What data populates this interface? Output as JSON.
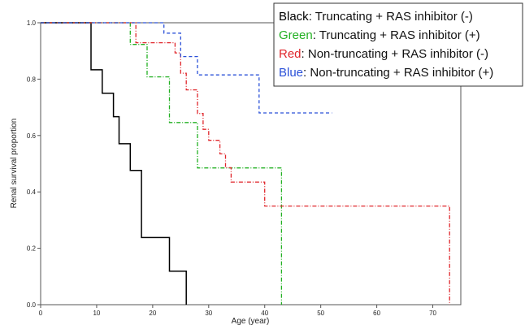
{
  "chart_data": {
    "type": "line",
    "subtype": "kaplan-meier step",
    "xlabel": "Age (year)",
    "ylabel": "Renal survival proportion",
    "xlim": [
      0,
      75
    ],
    "ylim": [
      0,
      1.0
    ],
    "x_ticks": [
      "0",
      "10",
      "20",
      "30",
      "40",
      "50",
      "60",
      "70"
    ],
    "y_ticks": [
      "0.0",
      "0.2",
      "0.4",
      "0.6",
      "0.8",
      "1.0"
    ],
    "grid": false,
    "legend_position": "top-right",
    "legend_entries": [
      {
        "prefix": "Black",
        "rest": ": Truncating + RAS inhibitor (-)",
        "color": "#000000"
      },
      {
        "prefix": "Green",
        "rest": ": Truncating + RAS inhibitor (+)",
        "color": "#22b022"
      },
      {
        "prefix": "Red",
        "rest": ": Non-truncating + RAS inhibitor (-)",
        "color": "#e0262b"
      },
      {
        "prefix": "Blue",
        "rest": ": Non-truncating + RAS inhibitor (+)",
        "color": "#2a50d8"
      }
    ],
    "series": [
      {
        "color": "#000000",
        "style": "solid",
        "points": [
          [
            0,
            1.0
          ],
          [
            9,
            1.0
          ],
          [
            9,
            0.833
          ],
          [
            11,
            0.833
          ],
          [
            11,
            0.75
          ],
          [
            13,
            0.75
          ],
          [
            13,
            0.667
          ],
          [
            14,
            0.667
          ],
          [
            14,
            0.571
          ],
          [
            16,
            0.571
          ],
          [
            16,
            0.476
          ],
          [
            18,
            0.476
          ],
          [
            18,
            0.238
          ],
          [
            23,
            0.238
          ],
          [
            23,
            0.119
          ],
          [
            26,
            0.119
          ],
          [
            26,
            0.0
          ]
        ]
      },
      {
        "color": "#22b022",
        "style": "dash-dot",
        "points": [
          [
            0,
            1.0
          ],
          [
            16,
            1.0
          ],
          [
            16,
            0.923
          ],
          [
            19,
            0.923
          ],
          [
            19,
            0.808
          ],
          [
            23,
            0.808
          ],
          [
            23,
            0.646
          ],
          [
            28,
            0.646
          ],
          [
            28,
            0.485
          ],
          [
            43,
            0.485
          ],
          [
            43,
            0.0
          ]
        ]
      },
      {
        "color": "#e0262b",
        "style": "dash-dot",
        "points": [
          [
            0,
            1.0
          ],
          [
            17,
            1.0
          ],
          [
            17,
            0.929
          ],
          [
            24,
            0.929
          ],
          [
            24,
            0.893
          ],
          [
            25,
            0.893
          ],
          [
            25,
            0.821
          ],
          [
            26,
            0.821
          ],
          [
            26,
            0.762
          ],
          [
            28,
            0.762
          ],
          [
            28,
            0.678
          ],
          [
            29,
            0.678
          ],
          [
            29,
            0.622
          ],
          [
            30,
            0.622
          ],
          [
            30,
            0.583
          ],
          [
            32,
            0.583
          ],
          [
            32,
            0.535
          ],
          [
            33,
            0.535
          ],
          [
            33,
            0.486
          ],
          [
            34,
            0.486
          ],
          [
            34,
            0.435
          ],
          [
            40,
            0.435
          ],
          [
            40,
            0.35
          ],
          [
            73,
            0.35
          ],
          [
            73,
            0.0
          ]
        ]
      },
      {
        "color": "#2a50d8",
        "style": "dashed",
        "points": [
          [
            0,
            1.0
          ],
          [
            22,
            1.0
          ],
          [
            22,
            0.963
          ],
          [
            25,
            0.963
          ],
          [
            25,
            0.88
          ],
          [
            28,
            0.88
          ],
          [
            28,
            0.815
          ],
          [
            39,
            0.815
          ],
          [
            39,
            0.68
          ],
          [
            52,
            0.68
          ]
        ]
      }
    ]
  }
}
